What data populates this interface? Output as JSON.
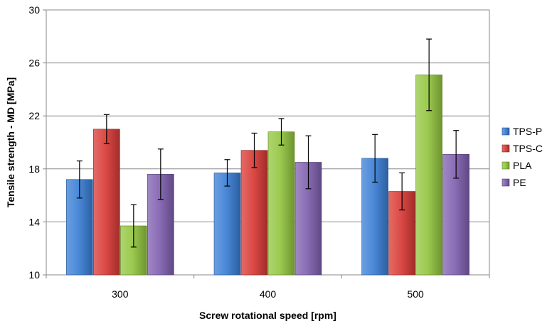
{
  "chart_data": {
    "type": "bar",
    "title": "",
    "xlabel": "Screw rotational speed [rpm]",
    "ylabel": "Tensile strength - MD [MPa]",
    "ylim": [
      10,
      30
    ],
    "yticks": [
      10,
      14,
      18,
      22,
      26,
      30
    ],
    "grid": true,
    "legend_position": "right",
    "categories": [
      "300",
      "400",
      "500"
    ],
    "series": [
      {
        "name": "TPS-P",
        "color": "#3a7fd5",
        "values": [
          17.2,
          17.7,
          18.8
        ],
        "errors": [
          1.4,
          1.0,
          1.8
        ]
      },
      {
        "name": "TPS-C",
        "color": "#d93a36",
        "values": [
          21.0,
          19.4,
          16.3
        ],
        "errors": [
          1.1,
          1.3,
          1.4
        ]
      },
      {
        "name": "PLA",
        "color": "#93c540",
        "values": [
          13.7,
          20.8,
          25.1
        ],
        "errors": [
          1.6,
          1.0,
          2.7
        ]
      },
      {
        "name": "PE",
        "color": "#8060b0",
        "values": [
          17.6,
          18.5,
          19.1
        ],
        "errors": [
          1.9,
          2.0,
          1.8
        ]
      }
    ]
  }
}
